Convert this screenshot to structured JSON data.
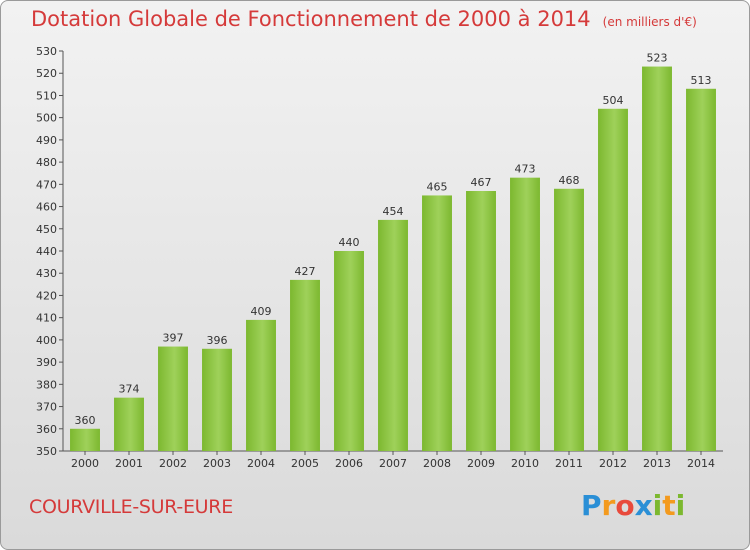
{
  "chart_data": {
    "type": "bar",
    "title": "Dotation Globale de Fonctionnement de 2000 à 2014",
    "subtitle": "(en milliers d'€)",
    "categories": [
      "2000",
      "2001",
      "2002",
      "2003",
      "2004",
      "2005",
      "2006",
      "2007",
      "2008",
      "2009",
      "2010",
      "2011",
      "2012",
      "2013",
      "2014"
    ],
    "values": [
      360,
      374,
      397,
      396,
      409,
      427,
      440,
      454,
      465,
      467,
      473,
      468,
      504,
      523,
      513
    ],
    "xlabel": "",
    "ylabel": "",
    "ylim": [
      350,
      530
    ],
    "ytick_step": 10,
    "grid": false,
    "legend": "none",
    "bar_color": "#7cb82f",
    "bar_color_light": "#9fd15a"
  },
  "footer": {
    "commune": "COURVILLE-SUR-EURE",
    "logo_letters": [
      {
        "ch": "P",
        "color": "#2a8fd6"
      },
      {
        "ch": "r",
        "color": "#f39a1e"
      },
      {
        "ch": "o",
        "color": "#e84a3c"
      },
      {
        "ch": "x",
        "color": "#2a8fd6"
      },
      {
        "ch": "i",
        "color": "#7cb82f"
      },
      {
        "ch": "t",
        "color": "#f39a1e"
      },
      {
        "ch": "i",
        "color": "#7cb82f"
      }
    ]
  }
}
